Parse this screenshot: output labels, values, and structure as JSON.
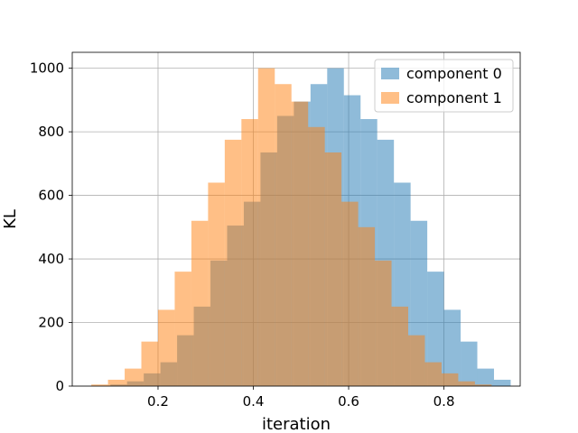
{
  "chart_data": {
    "type": "histogram",
    "xlabel": "iteration",
    "ylabel": "KL",
    "xlim": [
      0.02,
      0.96
    ],
    "ylim": [
      0,
      1050
    ],
    "xticks": [
      0.2,
      0.4,
      0.6,
      0.8
    ],
    "xtick_labels": [
      "0.2",
      "0.4",
      "0.6",
      "0.8"
    ],
    "yticks": [
      0,
      200,
      400,
      600,
      800,
      1000
    ],
    "ytick_labels": [
      "0",
      "200",
      "400",
      "600",
      "800",
      "1000"
    ],
    "grid": true,
    "legend_position": "top-right",
    "series": [
      {
        "name": "component 0",
        "color": "#1f77b4",
        "alpha": 0.5,
        "bin_edges": [
          0.1,
          0.135,
          0.17,
          0.205,
          0.24,
          0.275,
          0.31,
          0.345,
          0.38,
          0.415,
          0.45,
          0.485,
          0.52,
          0.555,
          0.59,
          0.625,
          0.66,
          0.695,
          0.73,
          0.765,
          0.8,
          0.835,
          0.87,
          0.905,
          0.94
        ],
        "values": [
          5,
          15,
          40,
          75,
          160,
          250,
          395,
          505,
          580,
          735,
          850,
          895,
          950,
          1000,
          915,
          840,
          775,
          640,
          520,
          360,
          240,
          140,
          55,
          20
        ]
      },
      {
        "name": "component 1",
        "color": "#ff7f0e",
        "alpha": 0.5,
        "bin_edges": [
          0.06,
          0.095,
          0.13,
          0.165,
          0.2,
          0.235,
          0.27,
          0.305,
          0.34,
          0.375,
          0.41,
          0.445,
          0.48,
          0.515,
          0.55,
          0.585,
          0.62,
          0.655,
          0.69,
          0.725,
          0.76,
          0.795,
          0.83,
          0.865,
          0.9
        ],
        "values": [
          5,
          20,
          55,
          140,
          240,
          360,
          520,
          640,
          775,
          840,
          1000,
          950,
          895,
          815,
          735,
          580,
          500,
          395,
          250,
          160,
          75,
          40,
          15,
          5
        ]
      }
    ]
  }
}
